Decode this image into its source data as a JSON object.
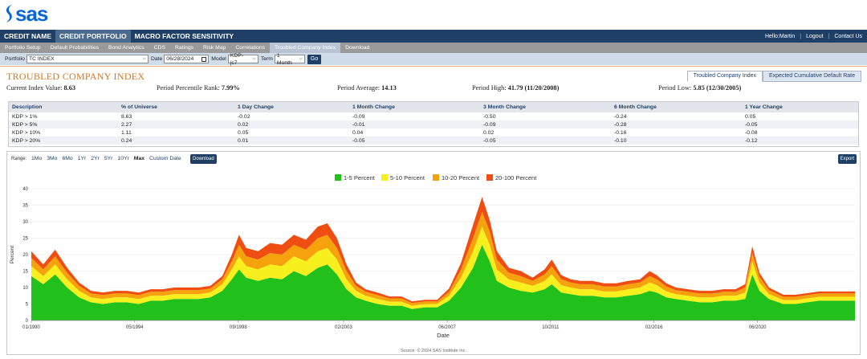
{
  "brand": {
    "name": "sas",
    "color": "#0766d1"
  },
  "topnav": {
    "tabs": [
      {
        "label": "CREDIT NAME",
        "active": false
      },
      {
        "label": "CREDIT PORTFOLIO",
        "active": true
      },
      {
        "label": "MACRO FACTOR SENSITIVITY",
        "active": false
      }
    ],
    "greeting": "Hello:Martin",
    "logout": "Logout",
    "contact": "Contact Us"
  },
  "subnav": {
    "items": [
      {
        "label": "Portfolio Setup",
        "active": false
      },
      {
        "label": "Default Probabilities",
        "active": false
      },
      {
        "label": "Bond Analytics",
        "active": false
      },
      {
        "label": "CDS",
        "active": false
      },
      {
        "label": "Ratings",
        "active": false
      },
      {
        "label": "Risk Map",
        "active": false
      },
      {
        "label": "Correlations",
        "active": false
      },
      {
        "label": "Troubled Company Index",
        "active": true
      },
      {
        "label": "Download",
        "active": false
      }
    ]
  },
  "filters": {
    "portfolio_label": "Portfolio",
    "portfolio_value": "TC INDEX",
    "date_label": "Date",
    "date_value": "06/28/2024",
    "model_label": "Model",
    "model_value": "KDP-jc7",
    "term_label": "Term",
    "term_value": "1 Month",
    "go_label": "Go"
  },
  "page": {
    "title": "TROUBLED COMPANY INDEX",
    "view_tabs": [
      {
        "label": "Troubled Company Index",
        "active": true
      },
      {
        "label": "Expected Cumulative Default Rate",
        "active": false
      }
    ]
  },
  "stats": {
    "current_label": "Current Index Value:",
    "current_value": "8.63",
    "rank_label": "Period Percentile Rank:",
    "rank_value": "7.99%",
    "avg_label": "Period Average:",
    "avg_value": "14.13",
    "high_label": "Period High:",
    "high_value": "41.79 (11/20/2008)",
    "low_label": "Period Low:",
    "low_value": "5.85 (12/30/2005)"
  },
  "summary": {
    "headers": [
      "Description",
      "% of Universe",
      "1 Day Change",
      "1 Month Change",
      "3 Month Change",
      "6 Month Change",
      "1 Year Change"
    ],
    "rows": [
      [
        "KDP > 1%",
        "8.63",
        "-0.02",
        "-0.09",
        "-0.50",
        "-0.24",
        "0.05"
      ],
      [
        "KDP > 5%",
        "2.27",
        "0.02",
        "-0.01",
        "-0.09",
        "-0.28",
        "-0.05"
      ],
      [
        "KDP > 10%",
        "1.11",
        "0.05",
        "0.04",
        "0.02",
        "-0.16",
        "-0.08"
      ],
      [
        "KDP > 20%",
        "0.24",
        "0.01",
        "-0.05",
        "-0.05",
        "-0.10",
        "-0.12"
      ]
    ]
  },
  "chart_controls": {
    "range_label": "Range:",
    "ranges": [
      {
        "label": "1Mo",
        "active": false
      },
      {
        "label": "3Mo",
        "active": false
      },
      {
        "label": "6Mo",
        "active": false
      },
      {
        "label": "1Yr",
        "active": false
      },
      {
        "label": "2Yr",
        "active": false
      },
      {
        "label": "5Yr",
        "active": false
      },
      {
        "label": "10Yr",
        "active": false
      },
      {
        "label": "Max",
        "active": true
      },
      {
        "label": "Custom Date",
        "active": false
      }
    ],
    "download_label": "Download",
    "export_label": "Export"
  },
  "chart_data": {
    "type": "area",
    "stacked": true,
    "xlabel": "Date",
    "ylabel": "Percent",
    "ylim": [
      0,
      40
    ],
    "yticks": [
      0,
      5,
      10,
      15,
      20,
      25,
      30,
      35,
      40
    ],
    "xlim": [
      1990.0,
      2024.5
    ],
    "xticks": [
      {
        "x": 1990.0,
        "label": "01/1990"
      },
      {
        "x": 1994.33,
        "label": "05/1994"
      },
      {
        "x": 1998.67,
        "label": "09/1998"
      },
      {
        "x": 2003.08,
        "label": "02/2003"
      },
      {
        "x": 2007.42,
        "label": "06/2007"
      },
      {
        "x": 2011.75,
        "label": "10/2011"
      },
      {
        "x": 2016.08,
        "label": "02/2016"
      },
      {
        "x": 2020.42,
        "label": "06/2020"
      }
    ],
    "legend_position": "top-center",
    "x": [
      1990.0,
      1990.5,
      1991.0,
      1991.5,
      1992.0,
      1992.5,
      1993.0,
      1993.5,
      1994.0,
      1994.5,
      1995.0,
      1995.5,
      1996.0,
      1996.5,
      1997.0,
      1997.5,
      1998.0,
      1998.4,
      1998.7,
      1999.0,
      1999.5,
      2000.0,
      2000.5,
      2001.0,
      2001.5,
      2002.0,
      2002.4,
      2002.8,
      2003.2,
      2003.6,
      2004.0,
      2004.5,
      2005.0,
      2005.5,
      2005.95,
      2006.5,
      2007.0,
      2007.5,
      2008.0,
      2008.5,
      2008.88,
      2009.2,
      2009.5,
      2010.0,
      2010.5,
      2011.0,
      2011.5,
      2011.8,
      2012.2,
      2012.6,
      2013.0,
      2013.5,
      2014.0,
      2014.5,
      2015.0,
      2015.5,
      2015.9,
      2016.2,
      2016.6,
      2017.0,
      2017.5,
      2018.0,
      2018.5,
      2019.0,
      2019.5,
      2019.9,
      2020.2,
      2020.5,
      2020.9,
      2021.5,
      2022.0,
      2022.5,
      2023.0,
      2023.5,
      2024.0,
      2024.5
    ],
    "series": [
      {
        "name": "1-5 Percent",
        "color": "#22c01a",
        "values": [
          13.5,
          11.0,
          14.0,
          10.0,
          7.0,
          5.5,
          5.0,
          5.5,
          5.5,
          5.0,
          6.0,
          6.0,
          6.5,
          6.5,
          6.5,
          7.0,
          9.0,
          12.5,
          15.5,
          13.0,
          12.0,
          13.0,
          12.5,
          15.0,
          13.5,
          16.0,
          17.0,
          14.0,
          9.5,
          7.0,
          6.0,
          5.0,
          4.5,
          4.5,
          3.5,
          4.0,
          4.0,
          6.0,
          10.0,
          16.0,
          23.0,
          18.0,
          12.0,
          10.0,
          9.0,
          8.5,
          9.5,
          11.0,
          8.5,
          8.0,
          7.5,
          7.5,
          7.0,
          7.0,
          7.5,
          8.0,
          9.0,
          8.5,
          7.0,
          6.5,
          6.0,
          5.5,
          5.5,
          6.0,
          6.0,
          6.5,
          14.0,
          9.0,
          6.5,
          5.0,
          5.0,
          5.5,
          6.0,
          6.0,
          6.0,
          6.0
        ]
      },
      {
        "name": "5-10 Percent",
        "color": "#f7f01e",
        "values": [
          3.0,
          2.5,
          3.0,
          2.5,
          2.0,
          1.5,
          1.5,
          1.5,
          1.5,
          1.5,
          1.5,
          1.5,
          1.5,
          1.5,
          1.5,
          1.5,
          2.0,
          3.0,
          4.0,
          3.5,
          3.5,
          4.0,
          4.0,
          4.5,
          4.5,
          5.0,
          5.0,
          4.5,
          3.0,
          2.0,
          1.5,
          1.5,
          1.2,
          1.2,
          1.0,
          1.0,
          1.0,
          1.5,
          3.0,
          5.0,
          5.5,
          5.0,
          3.5,
          2.5,
          2.5,
          2.0,
          2.5,
          3.0,
          2.2,
          2.0,
          2.0,
          2.0,
          1.8,
          1.8,
          2.0,
          2.0,
          2.5,
          2.2,
          1.8,
          1.5,
          1.5,
          1.5,
          1.5,
          1.5,
          1.5,
          2.0,
          4.0,
          2.5,
          1.5,
          1.2,
          1.2,
          1.2,
          1.2,
          1.2,
          1.2,
          1.2
        ]
      },
      {
        "name": "10-20 Percent",
        "color": "#f5a20c",
        "values": [
          2.5,
          2.0,
          2.5,
          2.0,
          1.5,
          1.2,
          1.2,
          1.2,
          1.2,
          1.2,
          1.2,
          1.2,
          1.2,
          1.2,
          1.2,
          1.2,
          1.5,
          2.5,
          3.5,
          3.0,
          3.0,
          3.5,
          3.5,
          3.5,
          3.5,
          4.0,
          4.0,
          3.5,
          2.5,
          1.5,
          1.2,
          1.2,
          1.0,
          1.0,
          0.8,
          0.8,
          0.8,
          1.2,
          2.5,
          4.0,
          4.5,
          4.0,
          3.0,
          2.0,
          2.0,
          1.5,
          2.0,
          2.5,
          1.8,
          1.5,
          1.5,
          1.5,
          1.5,
          1.5,
          1.5,
          1.5,
          2.0,
          1.8,
          1.5,
          1.2,
          1.2,
          1.2,
          1.2,
          1.2,
          1.2,
          1.5,
          2.5,
          1.8,
          1.2,
          1.0,
          1.0,
          1.0,
          1.0,
          1.0,
          1.0,
          1.0
        ]
      },
      {
        "name": "20-100 Percent",
        "color": "#ef4d12",
        "values": [
          2.0,
          1.5,
          2.0,
          1.5,
          1.0,
          0.8,
          0.8,
          0.8,
          0.8,
          0.8,
          0.8,
          0.8,
          0.8,
          0.8,
          0.8,
          0.8,
          1.0,
          2.0,
          3.0,
          2.5,
          2.5,
          3.0,
          3.0,
          3.0,
          3.0,
          3.5,
          3.5,
          3.0,
          2.0,
          1.0,
          0.8,
          0.8,
          0.6,
          0.6,
          0.5,
          0.5,
          0.5,
          1.0,
          2.0,
          4.0,
          4.5,
          3.5,
          2.5,
          1.5,
          1.5,
          1.0,
          1.5,
          2.0,
          1.2,
          1.0,
          1.0,
          1.0,
          1.0,
          1.0,
          1.0,
          1.0,
          1.5,
          1.2,
          1.0,
          0.8,
          0.8,
          0.8,
          0.8,
          0.8,
          0.8,
          1.0,
          2.0,
          1.2,
          0.8,
          0.6,
          0.6,
          0.6,
          0.6,
          0.6,
          0.6,
          0.6
        ]
      }
    ],
    "source": "Source: © 2024 SAS Institute Inc."
  }
}
